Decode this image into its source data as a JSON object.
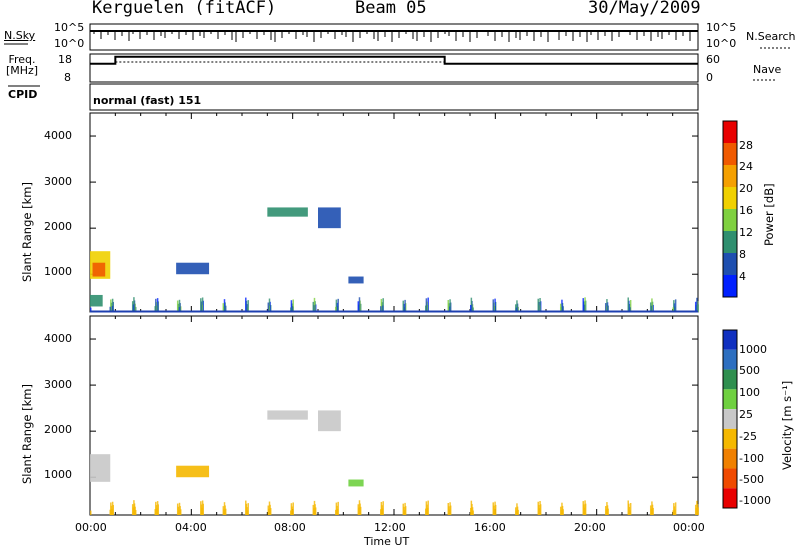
{
  "header": {
    "station": "Kerguelen (fitACF)",
    "beam": "Beam 05",
    "date": "30/May/2009"
  },
  "top_panels": {
    "nsky_label": "N.Sky",
    "nsky_ticks": [
      "10^5",
      "10^0"
    ],
    "nsearch_label": "N.Search",
    "nsearch_ticks": [
      "10^5",
      "10^0"
    ],
    "freq_label": "Freq.",
    "freq_unit": "[MHz]",
    "freq_ticks": [
      "18",
      "8"
    ],
    "nave_label": "Nave",
    "nave_ticks": [
      "60",
      "0"
    ],
    "cpid_label": "CPID",
    "cpid_value": "normal (fast) 151"
  },
  "axes": {
    "xlabel": "Time UT",
    "xticks": [
      "00:00",
      "04:00",
      "08:00",
      "12:00",
      "16:00",
      "20:00",
      "00:00"
    ],
    "ylabel": "Slant Range [km]",
    "yticks": [
      "4000",
      "3000",
      "2000",
      "1000"
    ]
  },
  "colorbars": {
    "power": {
      "label": "Power [dB]",
      "ticks": [
        "28",
        "24",
        "20",
        "16",
        "12",
        "8",
        "4"
      ],
      "colors": [
        "#e80000",
        "#f05a00",
        "#f5a000",
        "#f0d000",
        "#7fd040",
        "#2f8f6f",
        "#1e4fb0",
        "#0020ff"
      ]
    },
    "velocity": {
      "label": "Velocity [m s⁻¹]",
      "ticks": [
        "1000",
        "500",
        "100",
        "25",
        "-25",
        "-100",
        "-500",
        "-1000"
      ],
      "colors": [
        "#1030c0",
        "#2d6fc0",
        "#2f8f4f",
        "#6fd040",
        "#c8c8c8",
        "#f5b800",
        "#f08000",
        "#f04a00",
        "#e80000"
      ]
    }
  },
  "chart_data": [
    {
      "type": "heatmap",
      "title": "Power",
      "xlabel": "Time UT",
      "ylabel": "Slant Range [km]",
      "xlim_hours": [
        0,
        24
      ],
      "ylim_km": [
        180,
        4500
      ],
      "colorbar": "Power [dB]",
      "clim": [
        0,
        30
      ],
      "cells": [
        {
          "t": [
            0.0,
            0.8
          ],
          "r": [
            900,
            1500
          ],
          "value": 18
        },
        {
          "t": [
            0.1,
            0.6
          ],
          "r": [
            950,
            1250
          ],
          "value": 24
        },
        {
          "t": [
            0.0,
            0.5
          ],
          "r": [
            300,
            550
          ],
          "value": 10
        },
        {
          "t": [
            3.4,
            4.7
          ],
          "r": [
            1000,
            1250
          ],
          "value": 6
        },
        {
          "t": [
            7.0,
            8.6
          ],
          "r": [
            2250,
            2450
          ],
          "value": 8
        },
        {
          "t": [
            9.0,
            9.9
          ],
          "r": [
            2000,
            2450
          ],
          "value": 6
        },
        {
          "t": [
            10.2,
            10.8
          ],
          "r": [
            800,
            950
          ],
          "value": 6
        },
        {
          "t": [
            0.0,
            24.0
          ],
          "r": [
            180,
            500
          ],
          "value": 8
        }
      ]
    },
    {
      "type": "heatmap",
      "title": "Velocity",
      "xlabel": "Time UT",
      "ylabel": "Slant Range [km]",
      "xlim_hours": [
        0,
        24
      ],
      "ylim_km": [
        180,
        4500
      ],
      "colorbar": "Velocity [m s-1]",
      "cells": [
        {
          "t": [
            0.0,
            0.8
          ],
          "r": [
            900,
            1500
          ],
          "value": 0
        },
        {
          "t": [
            3.4,
            4.7
          ],
          "r": [
            1000,
            1250
          ],
          "value": -80
        },
        {
          "t": [
            7.0,
            8.6
          ],
          "r": [
            2250,
            2450
          ],
          "value": 0
        },
        {
          "t": [
            9.0,
            9.9
          ],
          "r": [
            2000,
            2450
          ],
          "value": 0
        },
        {
          "t": [
            10.2,
            10.8
          ],
          "r": [
            800,
            950
          ],
          "value": 60
        },
        {
          "t": [
            0.0,
            24.0
          ],
          "r": [
            180,
            500
          ],
          "value": -60
        }
      ]
    },
    {
      "type": "line",
      "title": "Freq. [MHz]",
      "x": [
        0,
        1,
        1,
        14,
        14,
        24
      ],
      "y": [
        14.5,
        14.5,
        17,
        17,
        14.5,
        14.5
      ],
      "ylim": [
        8,
        18
      ]
    },
    {
      "type": "line",
      "title": "Nave",
      "x": [
        0,
        24
      ],
      "y": [
        30,
        30
      ],
      "ylim": [
        0,
        60
      ]
    }
  ]
}
